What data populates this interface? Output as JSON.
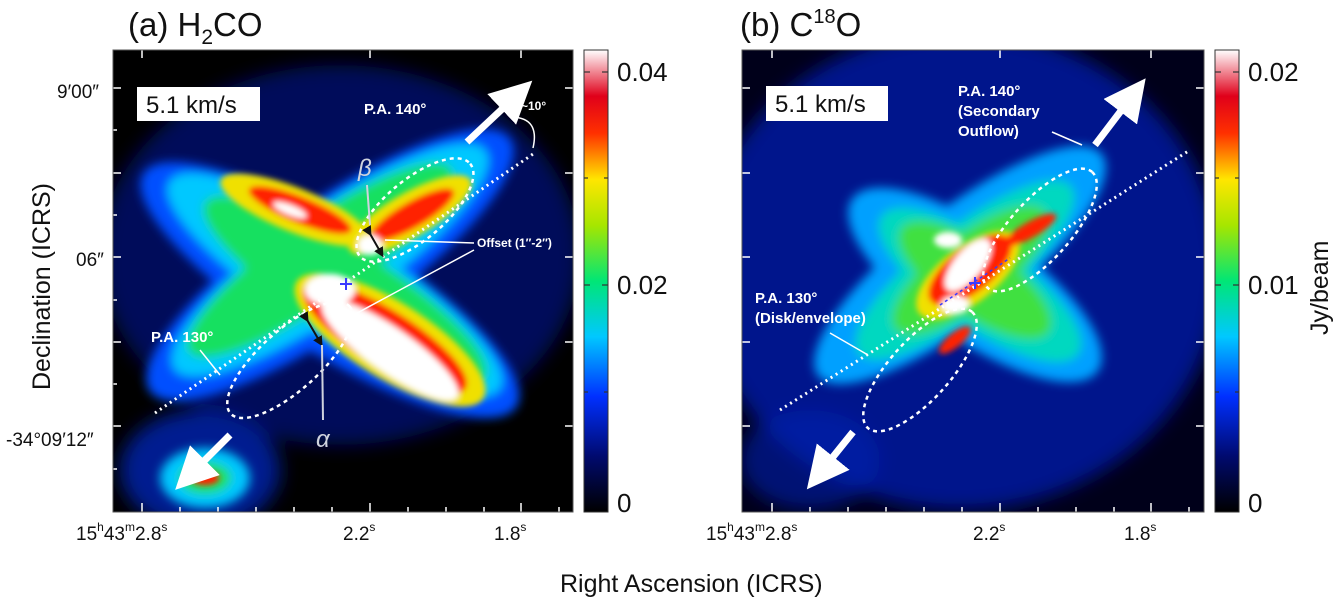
{
  "chart_data": [
    {
      "type": "heatmap",
      "title": "(a) H2CO",
      "title_parts": {
        "prefix": "(a) H",
        "sub": "2",
        "suffix": "CO"
      },
      "velocity_label": "5.1 km/s",
      "xlabel": "Right Ascension (ICRS)",
      "ylabel": "Declination (ICRS)",
      "x_ticks": [
        "15h43m2.8s",
        "2.2s",
        "1.8s"
      ],
      "y_ticks": [
        "9′00″",
        "06″",
        "-34°09′12″"
      ],
      "colorbar": {
        "min": 0,
        "max": 0.04,
        "ticks": [
          "0.04",
          "0.02",
          "0"
        ],
        "colormap": "rainbow (black-blue-cyan-green-yellow-red-white)"
      },
      "annotations": [
        {
          "text": "P.A. 140°"
        },
        {
          "text": "P.A. 130°"
        },
        {
          "text": "~10°"
        },
        {
          "text": "Offset (1″-2″)"
        },
        {
          "text": "β"
        },
        {
          "text": "α"
        }
      ]
    },
    {
      "type": "heatmap",
      "title": "(b) C18O",
      "title_parts": {
        "prefix": "(b) C",
        "sup": "18",
        "suffix": "O"
      },
      "velocity_label": "5.1 km/s",
      "x_ticks": [
        "15h43m2.8s",
        "2.2s",
        "1.8s"
      ],
      "colorbar": {
        "label": "Jy/beam",
        "min": 0,
        "max": 0.02,
        "ticks": [
          "0.02",
          "0.01",
          "0"
        ],
        "colormap": "rainbow (black-blue-cyan-green-yellow-red-white)"
      },
      "annotations": [
        {
          "text": "P.A. 140°"
        },
        {
          "text": "(Secondary"
        },
        {
          "text": "Outflow)"
        },
        {
          "text": "P.A. 130°"
        },
        {
          "text": "(Disk/envelope)"
        }
      ]
    }
  ]
}
